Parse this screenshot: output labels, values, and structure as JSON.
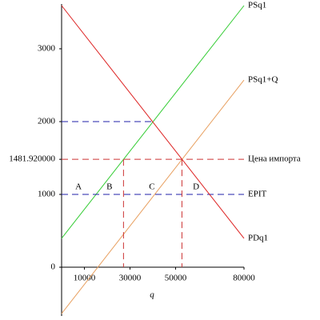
{
  "chart_data": {
    "type": "line",
    "x_label": "q",
    "xlim": [
      0,
      80000
    ],
    "ylim": [
      -670,
      3615
    ],
    "xticks": [
      10000,
      30000,
      50000,
      80000
    ],
    "yticks": [
      0,
      1000,
      {
        "value": 1481.92,
        "label": "1481.920000"
      },
      2000,
      3000
    ],
    "series": [
      {
        "name": "PSq1",
        "color": "#33cc33",
        "x": [
          0,
          80000
        ],
        "values": [
          396,
          3593
        ]
      },
      {
        "name": "PSq1+Q",
        "color": "#e8a060",
        "x": [
          0,
          80000
        ],
        "values": [
          -637,
          2571
        ]
      },
      {
        "name": "Цена импорта",
        "color": "#cc3333",
        "dashed": true,
        "x": [
          0,
          80000
        ],
        "values": [
          1481.92,
          1481.92
        ]
      },
      {
        "name": "EPIT",
        "color": "#2222aa",
        "dashed": true,
        "x": [
          0,
          80000
        ],
        "values": [
          1000,
          1000
        ]
      },
      {
        "name": "PDq1",
        "color": "#dd2222",
        "x": [
          0,
          80000
        ],
        "values": [
          3593,
          396
        ]
      },
      {
        "color": "#2222aa",
        "dashed": true,
        "x": [
          0,
          40000
        ],
        "values": [
          2000,
          2000
        ]
      },
      {
        "color": "#cc3333",
        "dashed": true,
        "x": [
          27150,
          27150
        ],
        "values": [
          1481.92,
          0
        ]
      },
      {
        "color": "#cc3333",
        "dashed": true,
        "x": [
          52780,
          52780
        ],
        "values": [
          1481.92,
          0
        ]
      }
    ],
    "annotations": [
      {
        "text": "A",
        "x": 7400,
        "y": 1000
      },
      {
        "text": "B",
        "x": 21000,
        "y": 1000
      },
      {
        "text": "C",
        "x": 39600,
        "y": 1000
      },
      {
        "text": "D",
        "x": 59000,
        "y": 1000
      }
    ]
  }
}
